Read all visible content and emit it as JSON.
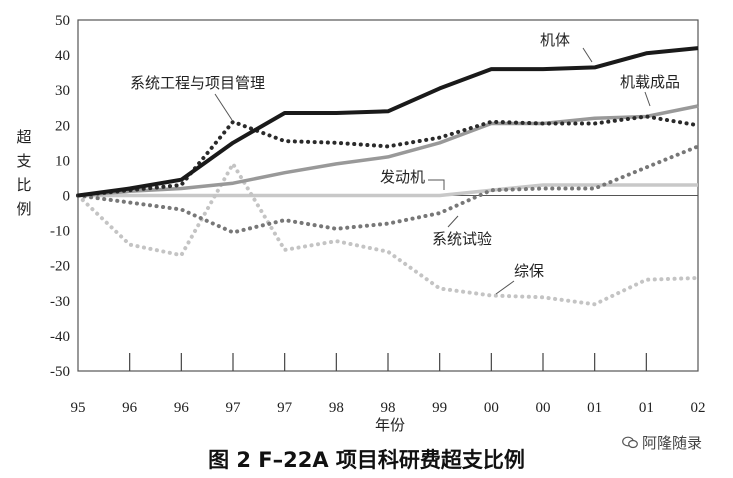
{
  "chart_data": {
    "type": "line",
    "xlabel": "年份",
    "ylabel": "超支比例",
    "caption": "图 2 F–22A 项目科研费超支比例",
    "watermark": "阿隆随录",
    "categories": [
      "95",
      "96",
      "96",
      "97",
      "97",
      "98",
      "98",
      "99",
      "00",
      "00",
      "01",
      "01",
      "02"
    ],
    "ylim": [
      -50,
      50
    ],
    "yticks": [
      50,
      40,
      30,
      20,
      10,
      0,
      -10,
      -20,
      -30,
      -40,
      -50
    ],
    "series": [
      {
        "name": "机体",
        "style": "solid",
        "color": "#1a1a1a",
        "values": [
          0,
          2,
          4.5,
          15,
          23.5,
          23.5,
          24,
          30.5,
          36,
          36,
          36.5,
          40.5,
          42
        ]
      },
      {
        "name": "机载成品",
        "style": "solid",
        "color": "#999999",
        "values": [
          0,
          1.2,
          2,
          3.5,
          6.5,
          9,
          11,
          15,
          20.5,
          20.5,
          22,
          22.5,
          25.5
        ]
      },
      {
        "name": "系统工程与项目管理",
        "style": "dotted",
        "color": "#2a2a2a",
        "values": [
          0,
          1.5,
          3,
          21,
          15.5,
          15,
          14,
          16.5,
          21,
          20.5,
          20.5,
          22.5,
          20
        ]
      },
      {
        "name": "发动机",
        "style": "solid",
        "color": "#c8c8c8",
        "values": [
          0,
          0,
          0,
          0,
          0,
          0,
          0,
          0,
          1.5,
          3,
          3,
          3,
          3
        ]
      },
      {
        "name": "系统试验",
        "style": "dotted",
        "color": "#777777",
        "values": [
          0,
          -2,
          -4,
          -10.5,
          -7,
          -9.5,
          -8,
          -5,
          1.5,
          2,
          2,
          8,
          14
        ]
      },
      {
        "name": "综保",
        "style": "dotted",
        "color": "#c4c4c4",
        "values": [
          0,
          -14,
          -17,
          9,
          -15.5,
          -13,
          -16,
          -26.5,
          -28.5,
          -29,
          -31,
          -24,
          -23.5
        ]
      }
    ]
  }
}
